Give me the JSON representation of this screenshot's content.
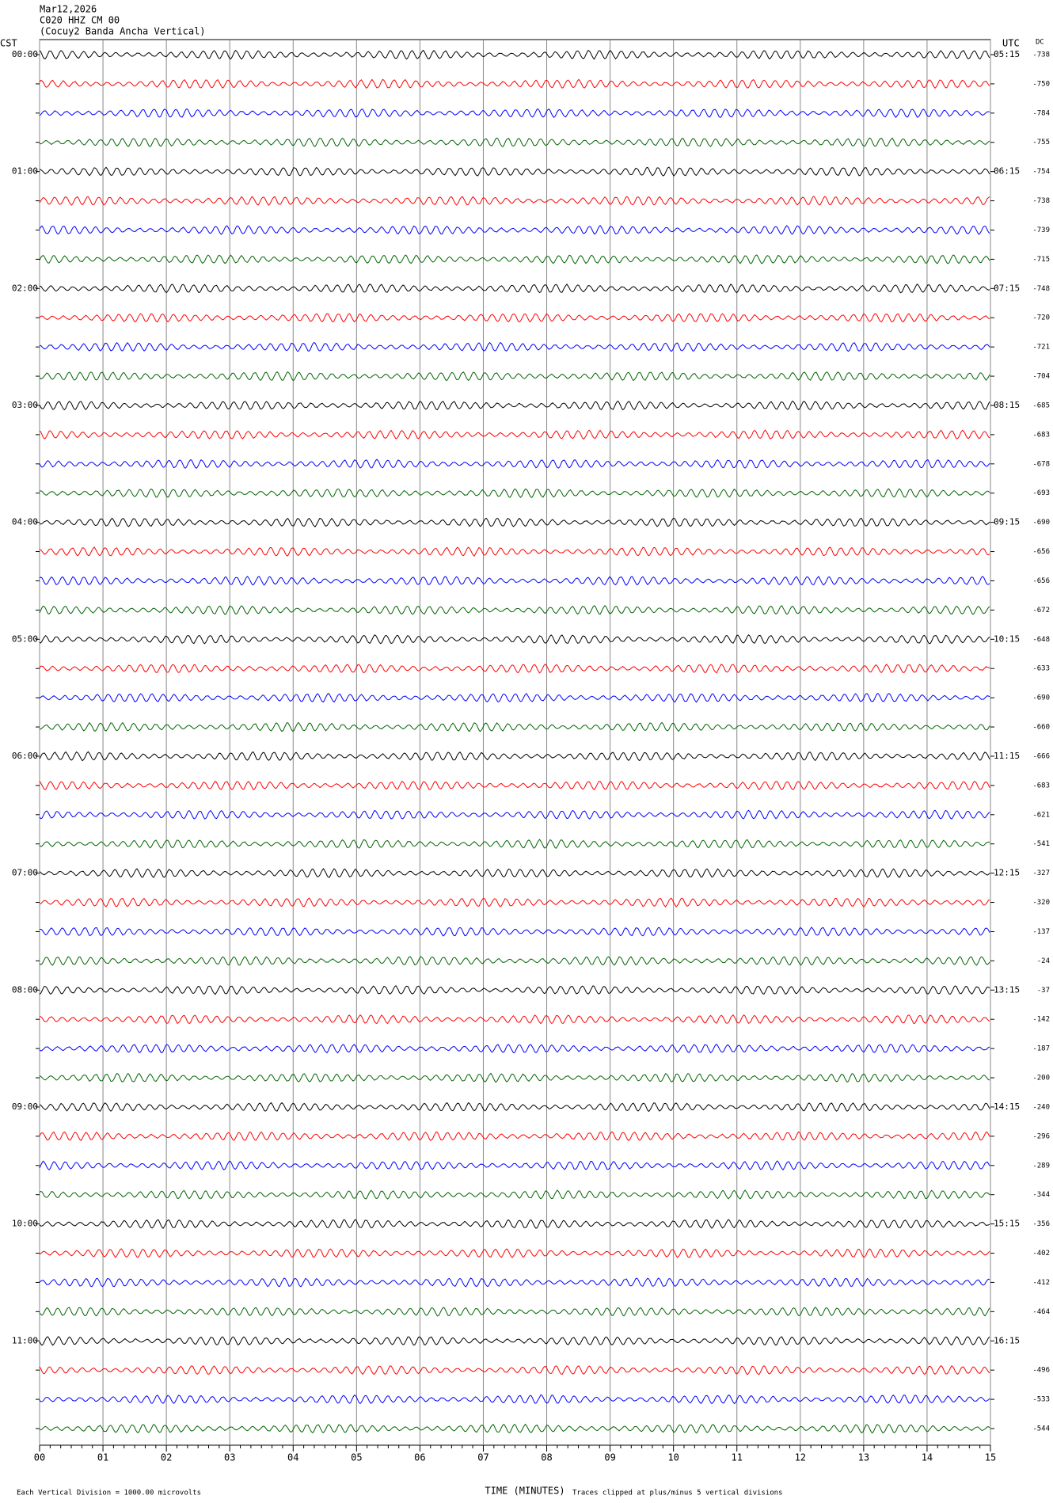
{
  "header": {
    "date": "Mar12,2026",
    "station": "C020 HHZ CM 00",
    "description": "(Cocuy2 Banda Ancha Vertical)"
  },
  "left_axis": {
    "title": "CST",
    "labels": [
      "00:00",
      "01:00",
      "02:00",
      "03:00",
      "04:00",
      "05:00",
      "06:00",
      "07:00",
      "08:00",
      "09:00",
      "10:00",
      "11:00"
    ]
  },
  "right_axis": {
    "title": "UTC",
    "labels": [
      "05:15",
      "06:15",
      "07:15",
      "08:15",
      "09:15",
      "10:15",
      "11:15",
      "12:15",
      "13:15",
      "14:15",
      "15:15",
      "16:15"
    ]
  },
  "dc": {
    "title": "DC",
    "values": [
      -738,
      -750,
      -784,
      -755,
      -754,
      -738,
      -739,
      -715,
      -748,
      -720,
      -721,
      -704,
      -685,
      -683,
      -678,
      -693,
      -690,
      -656,
      -656,
      -672,
      -648,
      -633,
      -690,
      -660,
      -666,
      -683,
      -621,
      -541,
      -327,
      -320,
      -137,
      -24,
      -37,
      -142,
      -187,
      -200,
      -240,
      -296,
      -289,
      -344,
      -356,
      -402,
      -412,
      -464,
      null,
      -496,
      -533,
      -544
    ]
  },
  "trace_colors": [
    "#000000",
    "#ff0000",
    "#0000ff",
    "#006400"
  ],
  "x_axis": {
    "title": "TIME (MINUTES)",
    "labels": [
      "00",
      "01",
      "02",
      "03",
      "04",
      "05",
      "06",
      "07",
      "08",
      "09",
      "10",
      "11",
      "12",
      "13",
      "14",
      "15"
    ]
  },
  "footer": {
    "scale": "Each Vertical Division = 1000.00 microvolts",
    "clip": "Traces clipped at plus/minus 5 vertical divisions"
  }
}
